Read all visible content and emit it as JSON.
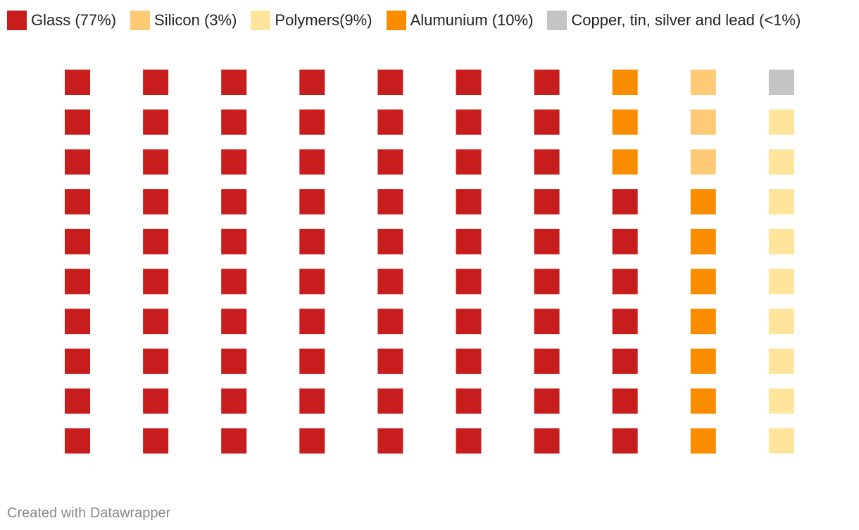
{
  "chart_data": {
    "type": "waffle",
    "title": "",
    "legend_position": "top-left",
    "categories": [
      {
        "key": "glass",
        "label": "Glass (77%)",
        "percent": 77,
        "color": "#c71e1d"
      },
      {
        "key": "silicon",
        "label": "Silicon (3%)",
        "percent": 3,
        "color": "#ffca76"
      },
      {
        "key": "polymers",
        "label": "Polymers(9%)",
        "percent": 9,
        "color": "#ffe59c"
      },
      {
        "key": "aluminium",
        "label": "Alumunium (10%)",
        "percent": 10,
        "color": "#fa8c00"
      },
      {
        "key": "metals",
        "label": "Copper, tin, silver and lead (<1%)",
        "percent": 1,
        "color": "#c4c4c4"
      }
    ],
    "grid": {
      "rows": 10,
      "columns": 10
    },
    "cells_by_column": [
      [
        "glass",
        "glass",
        "glass",
        "glass",
        "glass",
        "glass",
        "glass",
        "glass",
        "glass",
        "glass"
      ],
      [
        "glass",
        "glass",
        "glass",
        "glass",
        "glass",
        "glass",
        "glass",
        "glass",
        "glass",
        "glass"
      ],
      [
        "glass",
        "glass",
        "glass",
        "glass",
        "glass",
        "glass",
        "glass",
        "glass",
        "glass",
        "glass"
      ],
      [
        "glass",
        "glass",
        "glass",
        "glass",
        "glass",
        "glass",
        "glass",
        "glass",
        "glass",
        "glass"
      ],
      [
        "glass",
        "glass",
        "glass",
        "glass",
        "glass",
        "glass",
        "glass",
        "glass",
        "glass",
        "glass"
      ],
      [
        "glass",
        "glass",
        "glass",
        "glass",
        "glass",
        "glass",
        "glass",
        "glass",
        "glass",
        "glass"
      ],
      [
        "glass",
        "glass",
        "glass",
        "glass",
        "glass",
        "glass",
        "glass",
        "glass",
        "glass",
        "glass"
      ],
      [
        "aluminium",
        "aluminium",
        "aluminium",
        "glass",
        "glass",
        "glass",
        "glass",
        "glass",
        "glass",
        "glass"
      ],
      [
        "silicon",
        "silicon",
        "silicon",
        "aluminium",
        "aluminium",
        "aluminium",
        "aluminium",
        "aluminium",
        "aluminium",
        "aluminium"
      ],
      [
        "metals",
        "polymers",
        "polymers",
        "polymers",
        "polymers",
        "polymers",
        "polymers",
        "polymers",
        "polymers",
        "polymers"
      ]
    ]
  },
  "footer": {
    "credit": "Created with Datawrapper"
  }
}
